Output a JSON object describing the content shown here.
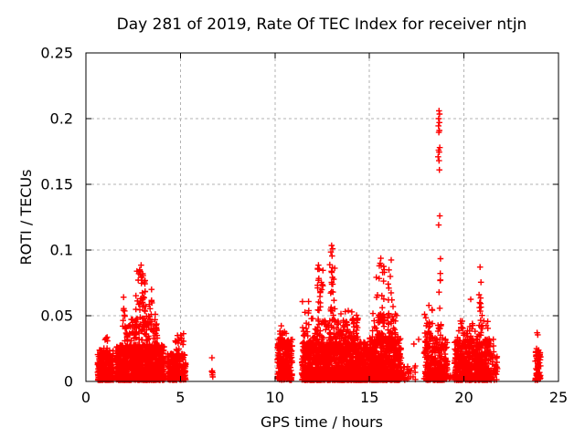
{
  "chart_data": {
    "type": "scatter",
    "title": "Day 281 of 2019, Rate Of TEC Index for receiver ntjn",
    "xlabel": "GPS time / hours",
    "ylabel": "ROTI / TECUs",
    "xlim": [
      0,
      25
    ],
    "ylim": [
      0,
      0.25
    ],
    "xticks": [
      0,
      5,
      10,
      15,
      20,
      25
    ],
    "yticks": [
      0,
      0.05,
      0.1,
      0.15,
      0.2,
      0.25
    ],
    "xtick_labels": [
      "0",
      "5",
      "10",
      "15",
      "20",
      "25"
    ],
    "ytick_labels": [
      "0",
      "0.05",
      "0.1",
      "0.15",
      "0.2",
      "0.25"
    ],
    "grid": true,
    "legend": "none",
    "marker": "plus",
    "marker_color": "#ff0000",
    "grid_color": "#b3b3b3",
    "axis_color": "#000000",
    "background_color": "#ffffff",
    "cluster_format": [
      "x_start_hours",
      "x_end_hours",
      "y_min_TECU",
      "y_max_TECU",
      "n_points",
      "skew_toward_min"
    ],
    "clusters": [
      [
        0.62,
        1.45,
        0.001,
        0.024,
        260,
        1.8
      ],
      [
        0.9,
        1.25,
        0.02,
        0.034,
        10,
        1
      ],
      [
        1.6,
        4.15,
        0.001,
        0.028,
        900,
        1.7
      ],
      [
        2.05,
        3.75,
        0.018,
        0.048,
        170,
        1.2
      ],
      [
        1.95,
        2.1,
        0.04,
        0.072,
        9,
        1
      ],
      [
        2.6,
        3.25,
        0.045,
        0.086,
        38,
        1.1
      ],
      [
        3.3,
        3.5,
        0.04,
        0.0715,
        10,
        1
      ],
      [
        3.6,
        3.78,
        0.028,
        0.056,
        9,
        1
      ],
      [
        4.3,
        5.28,
        0.001,
        0.022,
        230,
        1.6
      ],
      [
        4.72,
        4.95,
        0.02,
        0.0396,
        9,
        1
      ],
      [
        5.0,
        5.18,
        0.018,
        0.037,
        7,
        1
      ],
      [
        10.12,
        10.92,
        0.001,
        0.032,
        230,
        1.5
      ],
      [
        10.25,
        10.6,
        0.03,
        0.044,
        12,
        1
      ],
      [
        11.42,
        14.95,
        0.001,
        0.03,
        1150,
        1.8
      ],
      [
        11.7,
        14.4,
        0.022,
        0.048,
        170,
        1.2
      ],
      [
        11.45,
        11.8,
        0.03,
        0.061,
        14,
        1
      ],
      [
        12.15,
        12.55,
        0.045,
        0.0885,
        20,
        1.1
      ],
      [
        12.88,
        13.2,
        0.05,
        0.098,
        20,
        1.1
      ],
      [
        13.35,
        13.62,
        0.03,
        0.058,
        10,
        1
      ],
      [
        13.7,
        14.4,
        0.03,
        0.056,
        20,
        1
      ],
      [
        15.0,
        16.68,
        0.001,
        0.034,
        640,
        1.7
      ],
      [
        15.15,
        16.45,
        0.028,
        0.052,
        70,
        1.2
      ],
      [
        15.35,
        15.8,
        0.045,
        0.09,
        18,
        1.1
      ],
      [
        15.95,
        16.25,
        0.045,
        0.088,
        10,
        1.1
      ],
      [
        16.7,
        17.45,
        0.001,
        0.013,
        30,
        1.3
      ],
      [
        17.88,
        19.12,
        0.001,
        0.034,
        310,
        1.7
      ],
      [
        17.9,
        18.2,
        0.03,
        0.052,
        12,
        1
      ],
      [
        18.13,
        18.35,
        0.035,
        0.06,
        8,
        1
      ],
      [
        18.58,
        18.8,
        0.035,
        0.094,
        16,
        1
      ],
      [
        19.15,
        19.5,
        0.001,
        0.0045,
        8,
        1
      ],
      [
        19.5,
        21.45,
        0.001,
        0.032,
        540,
        1.7
      ],
      [
        19.6,
        21.35,
        0.026,
        0.046,
        48,
        1.1
      ],
      [
        20.78,
        20.98,
        0.04,
        0.06,
        6,
        1
      ],
      [
        21.45,
        21.78,
        0.001,
        0.02,
        26,
        1.3
      ],
      [
        23.76,
        24.05,
        0.001,
        0.025,
        60,
        1.4
      ]
    ],
    "outlier_points": [
      [
        6.67,
        0.018
      ],
      [
        6.68,
        0.008
      ],
      [
        6.7,
        0.0065
      ],
      [
        6.69,
        0.005
      ],
      [
        6.71,
        0.0035
      ],
      [
        6.66,
        0.0075
      ],
      [
        2.92,
        0.0885
      ],
      [
        2.85,
        0.085
      ],
      [
        2.8,
        0.082
      ],
      [
        3.02,
        0.0805
      ],
      [
        13.0,
        0.1035
      ],
      [
        13.05,
        0.101
      ],
      [
        12.96,
        0.0985
      ],
      [
        13.02,
        0.0955
      ],
      [
        12.3,
        0.0885
      ],
      [
        12.34,
        0.0855
      ],
      [
        15.6,
        0.0937
      ],
      [
        16.15,
        0.0924
      ],
      [
        15.52,
        0.088
      ],
      [
        17.35,
        0.0285
      ],
      [
        17.6,
        0.032
      ],
      [
        18.68,
        0.206
      ],
      [
        18.71,
        0.2035
      ],
      [
        18.66,
        0.2
      ],
      [
        18.7,
        0.197
      ],
      [
        18.65,
        0.1945
      ],
      [
        18.7,
        0.191
      ],
      [
        18.67,
        0.1895
      ],
      [
        18.72,
        0.178
      ],
      [
        18.66,
        0.176
      ],
      [
        18.69,
        0.1745
      ],
      [
        18.63,
        0.171
      ],
      [
        18.68,
        0.168
      ],
      [
        18.7,
        0.161
      ],
      [
        18.72,
        0.126
      ],
      [
        18.66,
        0.119
      ],
      [
        20.85,
        0.087
      ],
      [
        20.9,
        0.0755
      ],
      [
        20.8,
        0.066
      ],
      [
        20.88,
        0.0635
      ],
      [
        20.83,
        0.06
      ],
      [
        20.9,
        0.0565
      ],
      [
        20.86,
        0.0535
      ],
      [
        20.36,
        0.0625
      ],
      [
        20.42,
        0.04
      ],
      [
        21.55,
        0.032
      ],
      [
        21.56,
        0.027
      ],
      [
        21.57,
        0.0225
      ],
      [
        23.87,
        0.037
      ],
      [
        23.9,
        0.0355
      ]
    ]
  }
}
